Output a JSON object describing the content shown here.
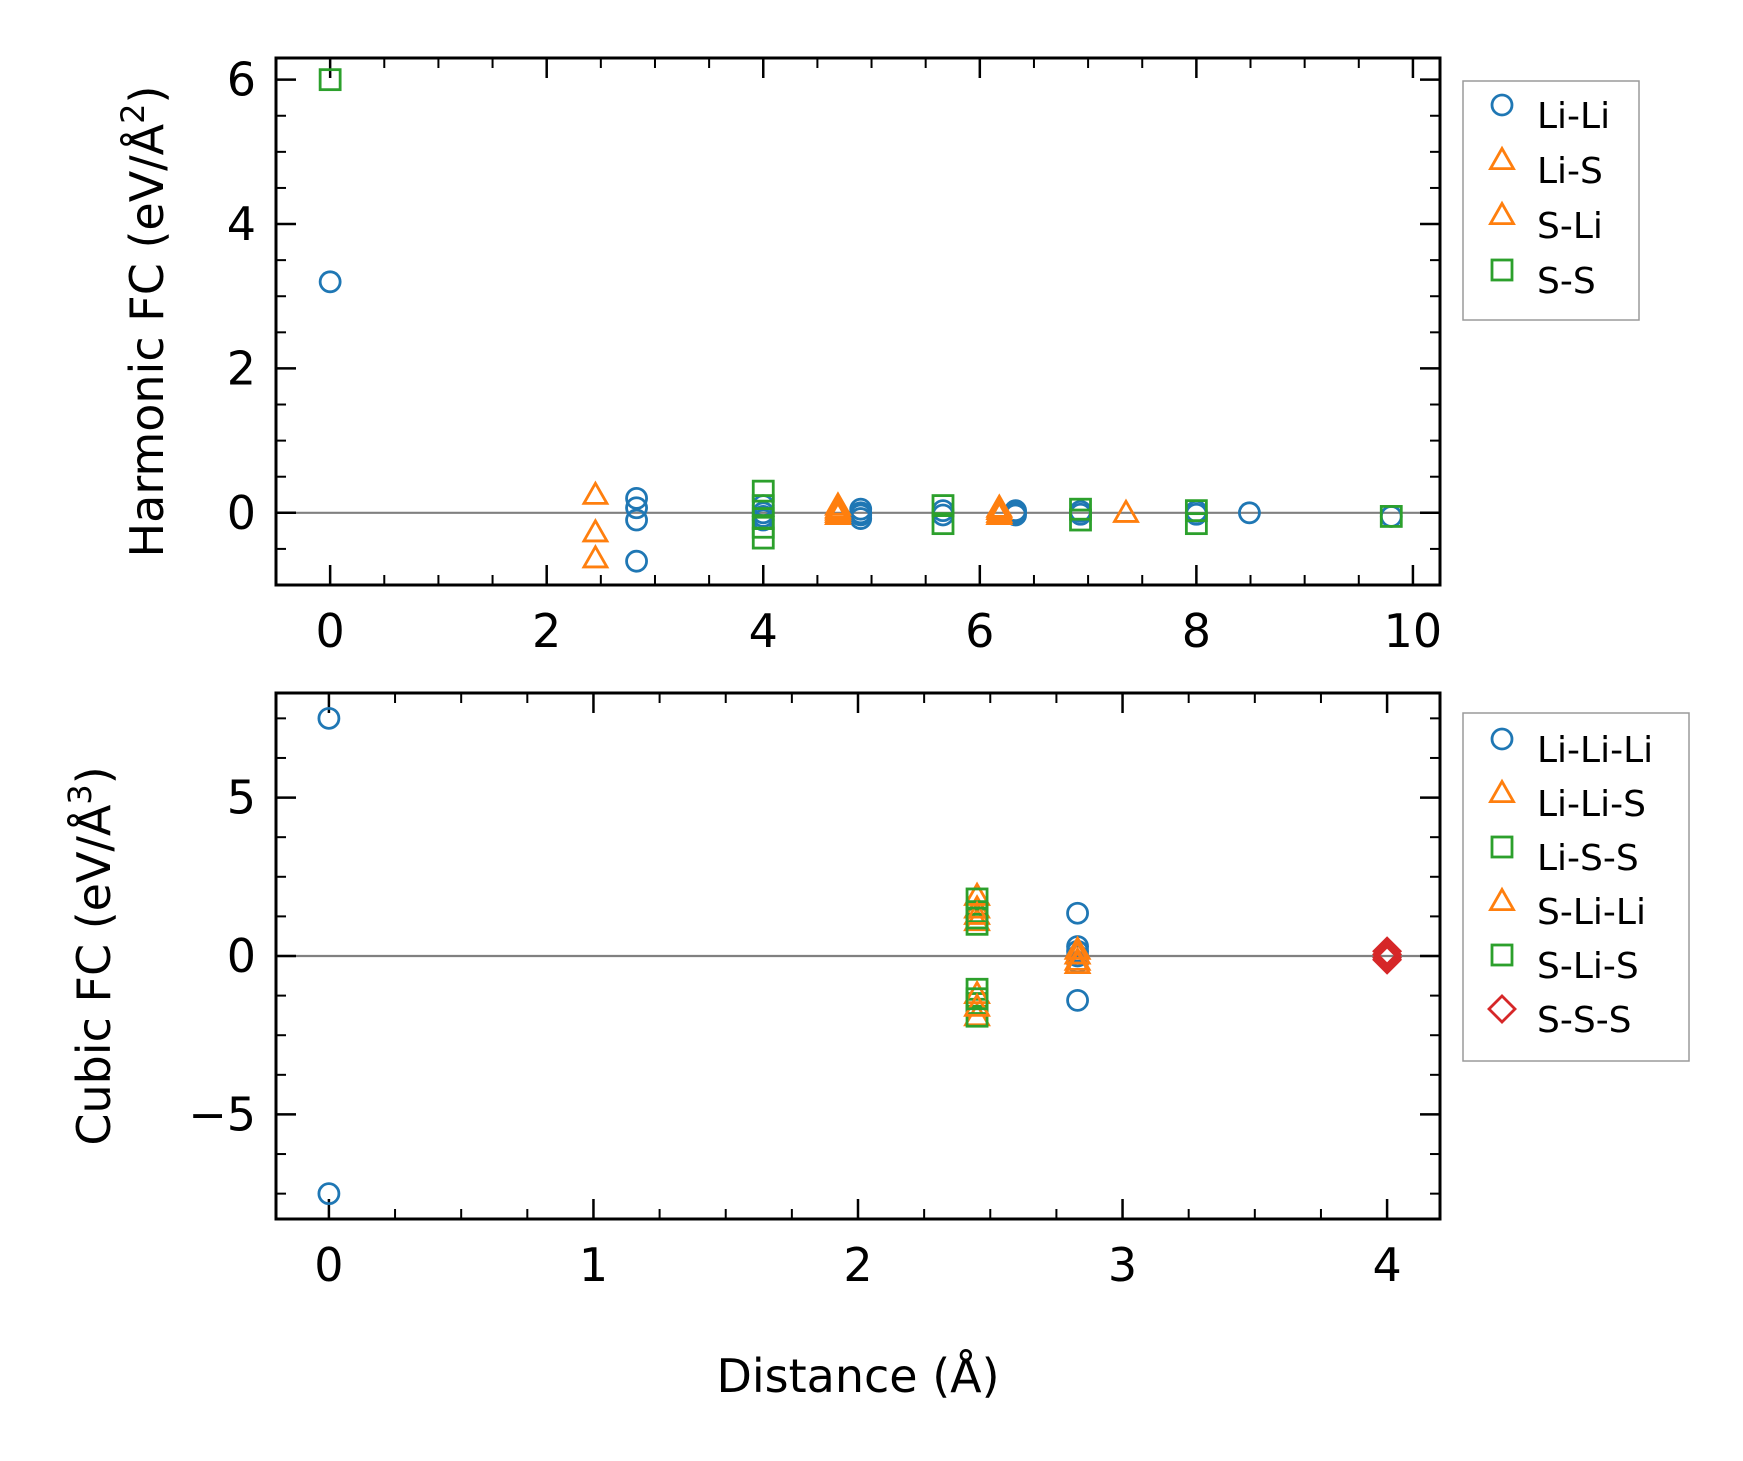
{
  "figure": {
    "xlabel": "Distance (Å)"
  },
  "colors": {
    "blue": "#1f77b4",
    "orange": "#ff7f0e",
    "green": "#2ca02c",
    "red": "#d62728",
    "zero_line": "#808080",
    "legend_border": "#9a9a9a"
  },
  "chart_data": [
    {
      "type": "scatter",
      "title": "",
      "xlabel": "",
      "ylabel": "Harmonic FC (eV/Å²)",
      "ylabel_main": "Harmonic FC (eV/Å",
      "ylabel_sup": "2",
      "ylabel_close": ")",
      "xlim": [
        -0.5,
        10.25
      ],
      "ylim": [
        -1.0,
        6.3
      ],
      "xticks": [
        0,
        2,
        4,
        6,
        8,
        10
      ],
      "xtick_labels": [
        "0",
        "2",
        "4",
        "6",
        "8",
        "10"
      ],
      "yticks": [
        0,
        2,
        4,
        6
      ],
      "ytick_labels": [
        "0",
        "2",
        "4",
        "6"
      ],
      "zero_line": true,
      "legend_position": "outside-right-top",
      "series": [
        {
          "name": "Li-Li",
          "marker": "circle",
          "color": "#1f77b4",
          "x": [
            0,
            2.83,
            2.83,
            2.83,
            2.83,
            4.0,
            4.0,
            4.0,
            4.0,
            4.9,
            4.9,
            4.9,
            4.9,
            5.66,
            5.66,
            6.33,
            6.33,
            6.33,
            6.93,
            6.93,
            8.0,
            8.0,
            8.49,
            9.8
          ],
          "y": [
            3.2,
            0.2,
            0.07,
            -0.1,
            -0.67,
            0.1,
            0.0,
            -0.05,
            -0.1,
            0.05,
            0.0,
            -0.03,
            -0.08,
            0.03,
            -0.03,
            0.03,
            0.0,
            -0.03,
            0.02,
            -0.02,
            0.02,
            -0.02,
            0.0,
            -0.05
          ]
        },
        {
          "name": "Li-S",
          "marker": "triangle",
          "color": "#ff7f0e",
          "x": [
            2.45,
            2.45,
            2.45,
            4.69,
            4.69,
            4.69,
            6.18,
            6.18,
            7.35
          ],
          "y": [
            0.25,
            -0.27,
            -0.63,
            0.1,
            0.03,
            -0.03,
            0.07,
            0.0,
            0.0
          ]
        },
        {
          "name": "S-Li",
          "marker": "triangle",
          "color": "#ff7f0e",
          "x": [
            4.69,
            4.69,
            6.18,
            6.18
          ],
          "y": [
            0.06,
            0.0,
            0.04,
            -0.03
          ]
        },
        {
          "name": "S-S",
          "marker": "square",
          "color": "#2ca02c",
          "x": [
            0,
            4.0,
            4.0,
            4.0,
            4.0,
            4.0,
            5.66,
            5.66,
            6.93,
            6.93,
            8.0,
            8.0,
            9.8
          ],
          "y": [
            6.0,
            0.3,
            0.1,
            -0.08,
            -0.2,
            -0.35,
            0.1,
            -0.15,
            0.05,
            -0.1,
            0.03,
            -0.15,
            -0.05
          ]
        }
      ]
    },
    {
      "type": "scatter",
      "title": "",
      "xlabel": "Distance (Å)",
      "ylabel": "Cubic FC (eV/Å³)",
      "ylabel_main": "Cubic FC (eV/Å",
      "ylabel_sup": "3",
      "ylabel_close": ")",
      "xlim": [
        -0.2,
        4.2
      ],
      "ylim": [
        -8.3,
        8.3
      ],
      "xticks": [
        0,
        1,
        2,
        3,
        4
      ],
      "xtick_labels": [
        "0",
        "1",
        "2",
        "3",
        "4"
      ],
      "yticks": [
        -5,
        0,
        5
      ],
      "ytick_labels": [
        "−5",
        "0",
        "5"
      ],
      "zero_line": true,
      "legend_position": "outside-right-top",
      "series": [
        {
          "name": "Li-Li-Li",
          "marker": "circle",
          "color": "#1f77b4",
          "x": [
            0,
            0,
            2.83,
            2.83,
            2.83,
            2.83,
            2.83,
            2.83
          ],
          "y": [
            7.5,
            -7.5,
            1.35,
            0.3,
            0.15,
            0.0,
            -0.2,
            -1.4
          ]
        },
        {
          "name": "Li-Li-S",
          "marker": "triangle",
          "color": "#ff7f0e",
          "x": [
            2.45,
            2.45,
            2.45,
            2.45,
            2.83,
            2.83
          ],
          "y": [
            1.9,
            1.5,
            1.1,
            -1.9,
            0.05,
            -0.25
          ]
        },
        {
          "name": "Li-S-S",
          "marker": "square",
          "color": "#2ca02c",
          "x": [
            2.45,
            2.45,
            2.45,
            2.45,
            2.45,
            2.45
          ],
          "y": [
            1.8,
            1.4,
            1.0,
            -1.05,
            -1.5,
            -1.9
          ]
        },
        {
          "name": "S-Li-Li",
          "marker": "triangle",
          "color": "#ff7f0e",
          "x": [
            2.45,
            2.45,
            2.45,
            2.83,
            2.83
          ],
          "y": [
            1.3,
            -1.2,
            -1.6,
            0.2,
            -0.15
          ]
        },
        {
          "name": "S-Li-S",
          "marker": "square",
          "color": "#2ca02c",
          "x": [
            2.45,
            2.45
          ],
          "y": [
            1.2,
            -1.35
          ]
        },
        {
          "name": "S-S-S",
          "marker": "diamond",
          "color": "#d62728",
          "x": [
            4.0,
            4.0,
            4.0,
            4.0
          ],
          "y": [
            0.15,
            0.05,
            -0.05,
            -0.12
          ]
        }
      ]
    }
  ]
}
